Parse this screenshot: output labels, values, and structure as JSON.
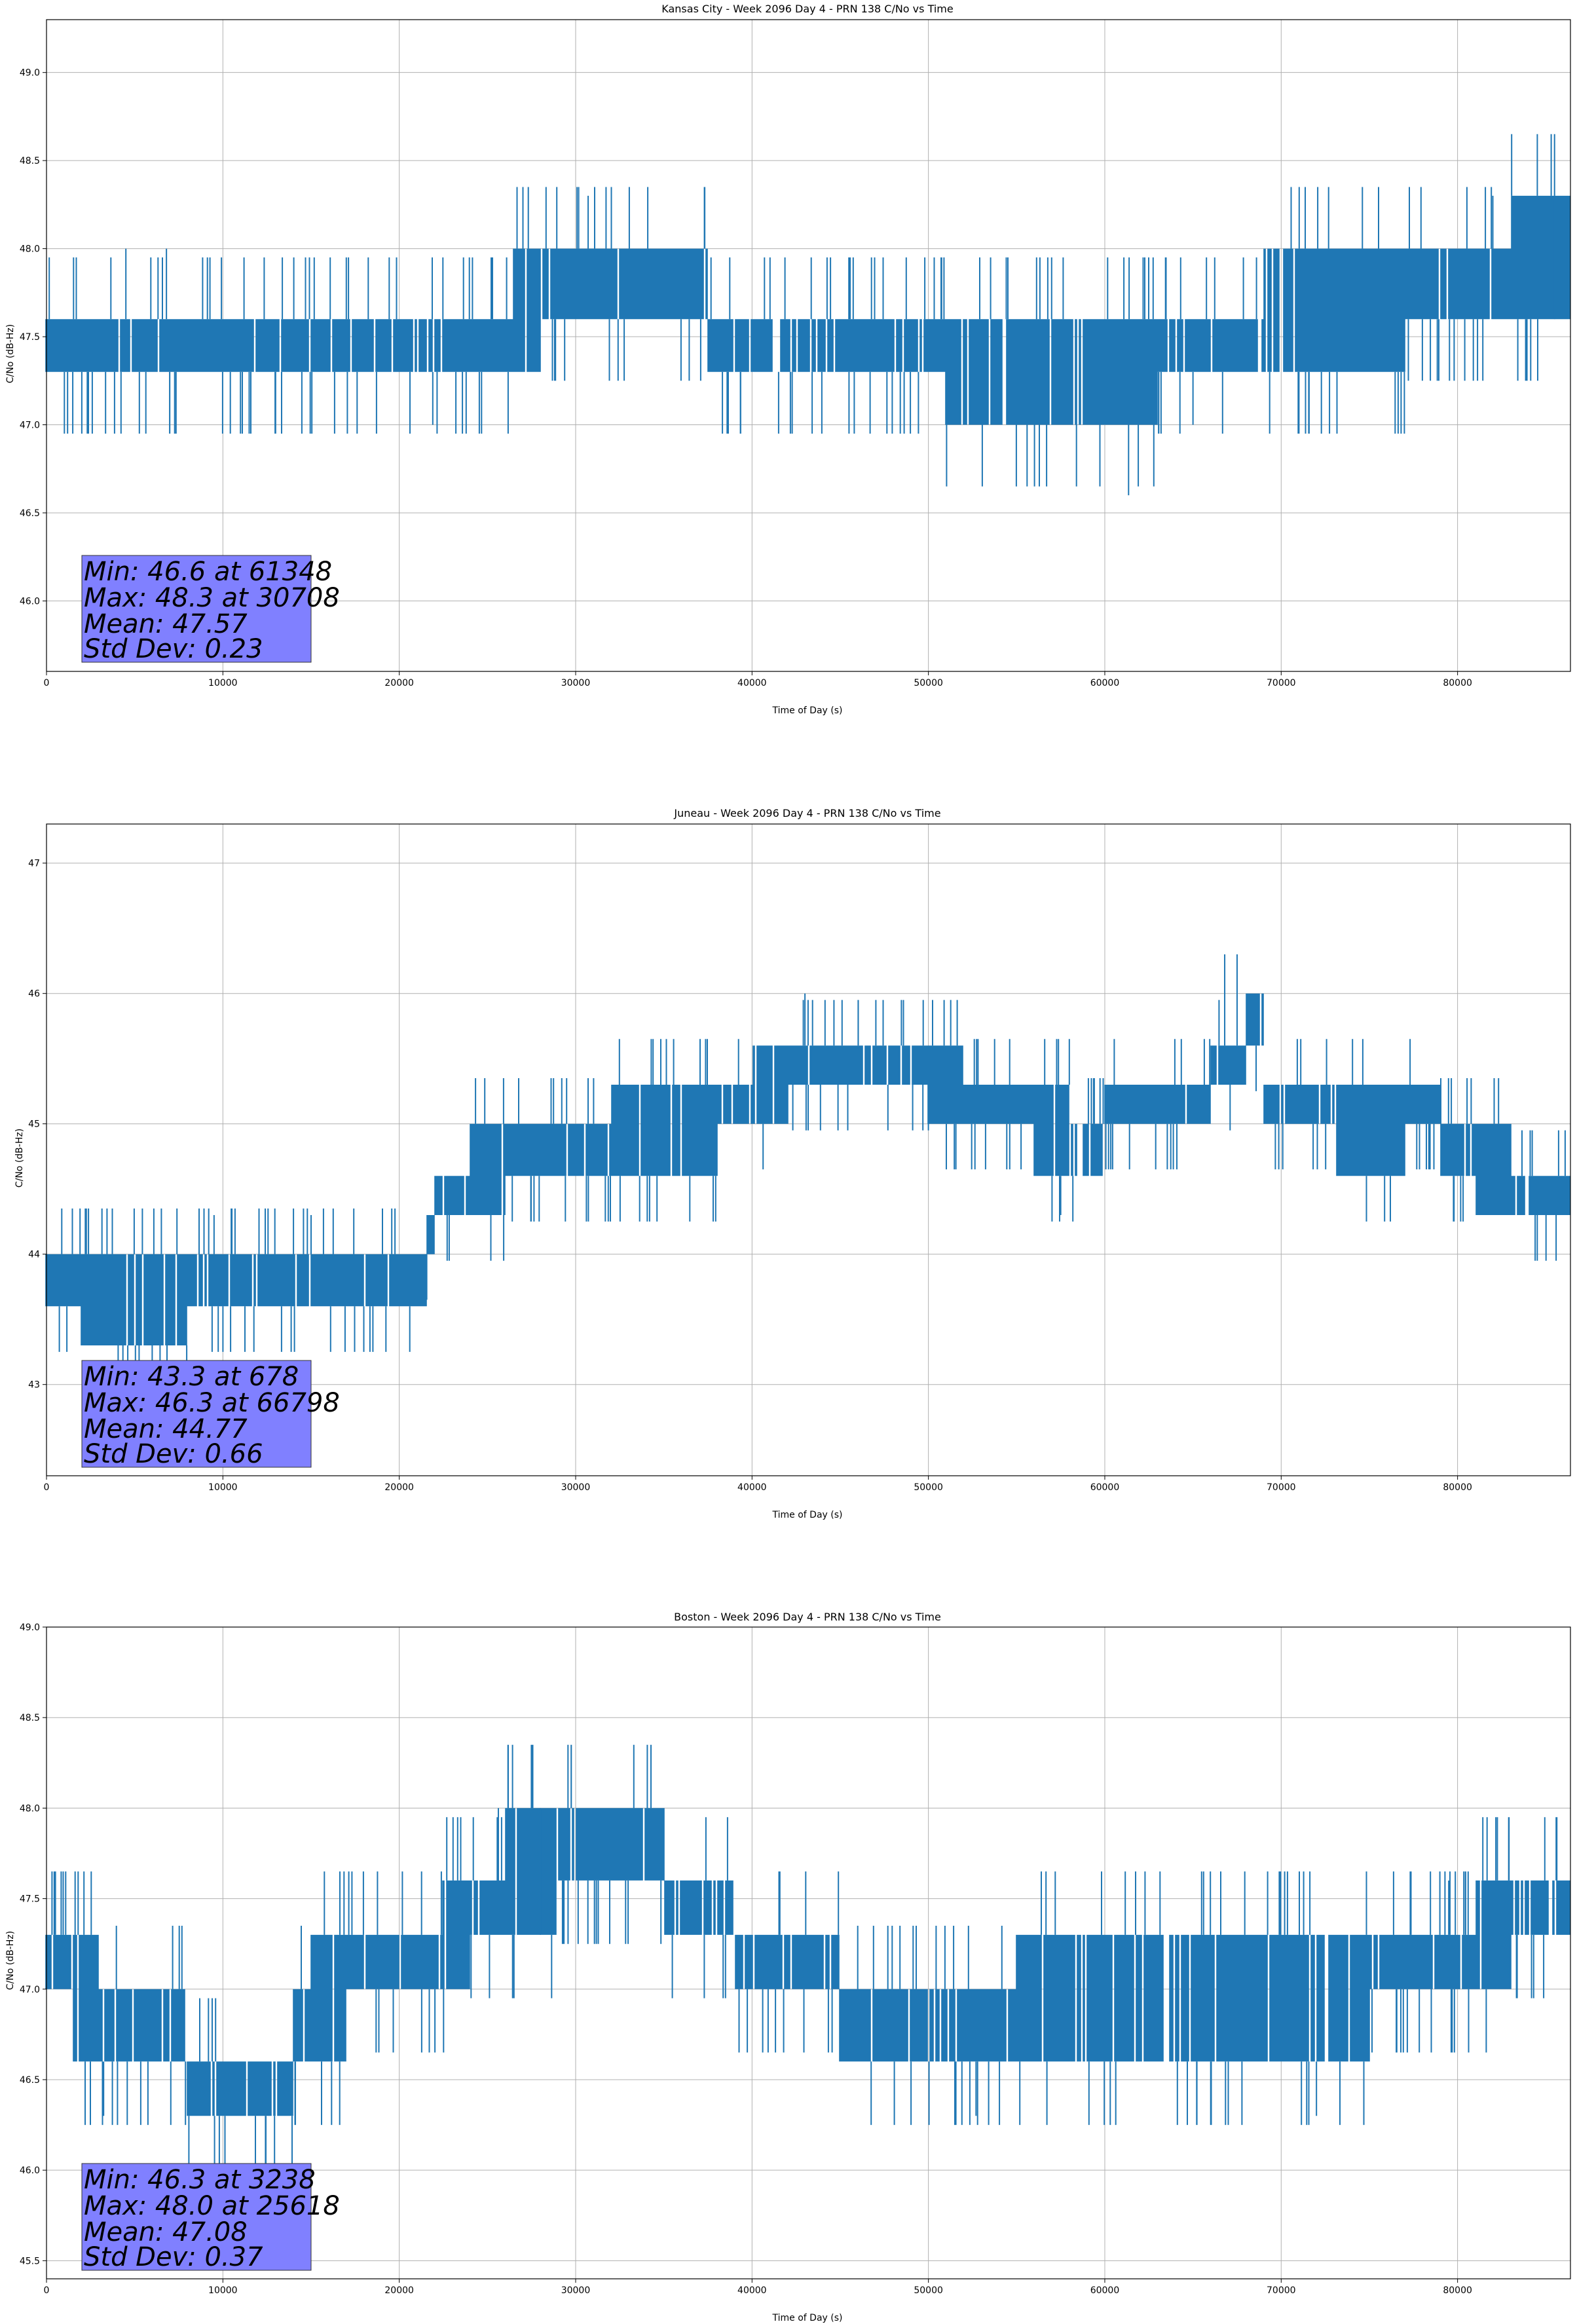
{
  "chart_data": [
    {
      "type": "line",
      "title": "Kansas City - Week 2096 Day 4 - PRN 138 C/No vs Time",
      "xlabel": "Time of Day (s)",
      "ylabel": "C/No (dB-Hz)",
      "xlim": [
        0,
        86400
      ],
      "ylim": [
        45.6,
        49.3
      ],
      "xticks": [
        0,
        10000,
        20000,
        30000,
        40000,
        50000,
        60000,
        70000,
        80000
      ],
      "yticks": [
        "46.0",
        "46.5",
        "47.0",
        "47.5",
        "48.0",
        "48.5",
        "49.0"
      ],
      "grid": true,
      "series_color": "#1f77b4",
      "series": [
        {
          "x": [
            0,
            2500,
            5000,
            8000,
            11000,
            14000,
            17000,
            20000,
            23000,
            25500,
            26500,
            28000,
            30000,
            32000,
            34000,
            36000,
            37500,
            39000,
            41000,
            43000,
            45000,
            47000,
            49000,
            51000,
            53000,
            55000,
            57000,
            59000,
            61000,
            63000,
            65000,
            67000,
            69000,
            71000,
            73000,
            75000,
            77000,
            79000,
            81000,
            83000,
            85000,
            86400
          ],
          "low": [
            47.3,
            47.3,
            47.3,
            47.3,
            47.3,
            47.3,
            47.3,
            47.3,
            47.3,
            47.3,
            47.3,
            47.6,
            47.6,
            47.6,
            47.6,
            47.6,
            47.3,
            47.3,
            47.3,
            47.3,
            47.3,
            47.3,
            47.3,
            47.0,
            47.0,
            47.0,
            47.0,
            47.0,
            47.0,
            47.3,
            47.3,
            47.3,
            47.3,
            47.3,
            47.3,
            47.3,
            47.6,
            47.6,
            47.6,
            47.6,
            47.6,
            47.6
          ],
          "high": [
            47.6,
            47.6,
            47.6,
            47.6,
            47.6,
            47.6,
            47.6,
            47.6,
            47.6,
            47.6,
            48.0,
            48.0,
            48.0,
            48.0,
            48.0,
            48.0,
            47.6,
            47.6,
            47.6,
            47.6,
            47.6,
            47.6,
            47.6,
            47.6,
            47.6,
            47.6,
            47.6,
            47.6,
            47.6,
            47.6,
            47.6,
            47.6,
            48.0,
            48.0,
            48.0,
            48.0,
            48.0,
            48.0,
            48.0,
            48.3,
            48.3,
            48.3
          ],
          "spikes": [
            [
              4500,
              48.0
            ],
            [
              6800,
              48.0
            ],
            [
              21900,
              47.0
            ],
            [
              30708,
              48.3
            ],
            [
              51000,
              47.0
            ],
            [
              61348,
              46.6
            ],
            [
              65000,
              47.0
            ],
            [
              82000,
              48.3
            ],
            [
              85500,
              48.3
            ]
          ]
        }
      ],
      "stats": {
        "min": "Min: 46.6 at 61348",
        "max": "Max: 48.3 at 30708",
        "mean": "Mean: 47.57",
        "std": "Std Dev: 0.23"
      }
    },
    {
      "type": "line",
      "title": "Juneau - Week 2096 Day 4 - PRN 138 C/No vs Time",
      "xlabel": "Time of Day (s)",
      "ylabel": "C/No (dB-Hz)",
      "xlim": [
        0,
        86400
      ],
      "ylim": [
        42.3,
        47.3
      ],
      "xticks": [
        0,
        10000,
        20000,
        30000,
        40000,
        50000,
        60000,
        70000,
        80000
      ],
      "yticks": [
        "43",
        "44",
        "45",
        "46",
        "47"
      ],
      "grid": true,
      "series_color": "#1f77b4",
      "series": [
        {
          "x": [
            0,
            2000,
            4000,
            6000,
            8000,
            10000,
            12000,
            14000,
            16000,
            18000,
            20000,
            21500,
            22000,
            24000,
            26000,
            28000,
            30000,
            32000,
            34000,
            36000,
            38000,
            40000,
            42000,
            44000,
            46000,
            48000,
            50000,
            52000,
            54000,
            56000,
            58000,
            60000,
            62000,
            64000,
            66000,
            68000,
            69000,
            71000,
            73000,
            75000,
            77000,
            79000,
            81000,
            83000,
            85000,
            86400
          ],
          "low": [
            43.6,
            43.3,
            43.3,
            43.3,
            43.6,
            43.6,
            43.6,
            43.6,
            43.6,
            43.6,
            43.6,
            44.0,
            44.3,
            44.3,
            44.6,
            44.6,
            44.6,
            44.6,
            44.6,
            44.6,
            45.0,
            45.0,
            45.3,
            45.3,
            45.3,
            45.3,
            45.0,
            45.0,
            45.0,
            44.6,
            44.6,
            45.0,
            45.0,
            45.0,
            45.3,
            45.6,
            45.0,
            45.0,
            44.6,
            44.6,
            45.0,
            44.6,
            44.3,
            44.3,
            44.3,
            44.3
          ],
          "high": [
            44.0,
            44.0,
            44.0,
            44.0,
            44.0,
            44.0,
            44.0,
            44.0,
            44.0,
            44.0,
            44.0,
            44.3,
            44.6,
            45.0,
            45.0,
            45.0,
            45.0,
            45.3,
            45.3,
            45.3,
            45.3,
            45.6,
            45.6,
            45.6,
            45.6,
            45.6,
            45.6,
            45.3,
            45.3,
            45.3,
            45.0,
            45.3,
            45.3,
            45.3,
            45.6,
            46.0,
            45.3,
            45.3,
            45.3,
            45.3,
            45.3,
            45.0,
            45.0,
            44.6,
            44.6,
            44.6
          ],
          "spikes": [
            [
              9500,
              44.3
            ],
            [
              15000,
              44.3
            ],
            [
              43000,
              46.0
            ],
            [
              57500,
              44.3
            ],
            [
              66798,
              46.3
            ],
            [
              67500,
              46.3
            ]
          ]
        }
      ],
      "stats": {
        "min": "Min: 43.3 at 678",
        "max": "Max: 46.3 at 66798",
        "mean": "Mean: 44.77",
        "std": "Std Dev: 0.66"
      }
    },
    {
      "type": "line",
      "title": "Boston - Week 2096 Day 4 - PRN 138 C/No vs Time",
      "xlabel": "Time of Day (s)",
      "ylabel": "C/No (dB-Hz)",
      "xlim": [
        0,
        86400
      ],
      "ylim": [
        45.4,
        49.0
      ],
      "xticks": [
        0,
        10000,
        20000,
        30000,
        40000,
        50000,
        60000,
        70000,
        80000
      ],
      "yticks": [
        "45.5",
        "46.0",
        "46.5",
        "47.0",
        "47.5",
        "48.0",
        "48.5",
        "49.0"
      ],
      "grid": true,
      "series_color": "#1f77b4",
      "series": [
        {
          "x": [
            0,
            1500,
            3000,
            5000,
            7000,
            8000,
            10000,
            12000,
            14000,
            15000,
            17000,
            19000,
            21000,
            22500,
            24000,
            26000,
            28000,
            29000,
            31000,
            33000,
            35000,
            37000,
            39000,
            41000,
            43000,
            45000,
            47000,
            49000,
            51000,
            53000,
            55000,
            57000,
            59000,
            61000,
            63000,
            65000,
            67000,
            69000,
            71000,
            73000,
            75000,
            77000,
            79000,
            81000,
            83000,
            85000,
            86400
          ],
          "low": [
            47.0,
            46.6,
            46.6,
            46.6,
            46.6,
            46.3,
            46.3,
            46.3,
            46.6,
            46.6,
            47.0,
            47.0,
            47.0,
            47.0,
            47.3,
            47.3,
            47.3,
            47.6,
            47.6,
            47.6,
            47.3,
            47.3,
            47.0,
            47.0,
            47.0,
            46.6,
            46.6,
            46.6,
            46.6,
            46.6,
            46.6,
            46.6,
            46.6,
            46.6,
            46.6,
            46.6,
            46.6,
            46.6,
            46.6,
            46.6,
            47.0,
            47.0,
            47.0,
            47.0,
            47.3,
            47.3,
            47.3
          ],
          "high": [
            47.3,
            47.3,
            47.0,
            47.0,
            47.0,
            46.6,
            46.6,
            46.6,
            47.0,
            47.3,
            47.3,
            47.3,
            47.3,
            47.6,
            47.6,
            48.0,
            48.0,
            48.0,
            48.0,
            48.0,
            47.6,
            47.6,
            47.3,
            47.3,
            47.3,
            47.0,
            47.0,
            47.0,
            47.0,
            47.0,
            47.3,
            47.3,
            47.3,
            47.3,
            47.3,
            47.3,
            47.3,
            47.3,
            47.3,
            47.3,
            47.3,
            47.3,
            47.3,
            47.6,
            47.6,
            47.6,
            47.6
          ],
          "spikes": [
            [
              3238,
              46.3
            ],
            [
              25618,
              48.0
            ],
            [
              28000,
              48.0
            ],
            [
              52700,
              46.3
            ],
            [
              72000,
              46.3
            ],
            [
              79500,
              47.6
            ]
          ]
        }
      ],
      "stats": {
        "min": "Min: 46.3 at 3238",
        "max": "Max: 48.0 at 25618",
        "mean": "Mean: 47.08",
        "std": "Std Dev: 0.37"
      }
    }
  ]
}
